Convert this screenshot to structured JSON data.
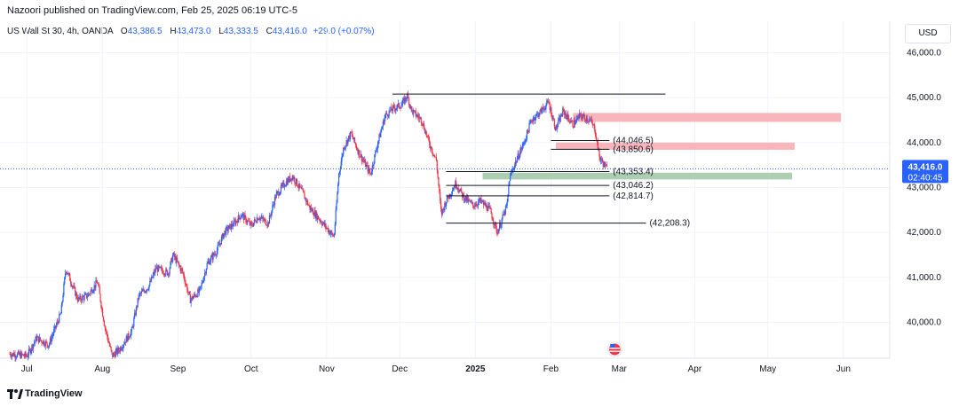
{
  "header": {
    "published": "Nazoori published on TradingView.com, Feb 25, 2025 06:19 UTC-5"
  },
  "legend": {
    "symbol": "US Wall St 30, 4h, OANDA",
    "o_label": "O",
    "o_value": "43,386.5",
    "h_label": "H",
    "h_value": "43,473.0",
    "l_label": "L",
    "l_value": "43,333.5",
    "c_label": "C",
    "c_value": "43,416.0",
    "change": "+29.0 (+0.07%)"
  },
  "currency_button": "USD",
  "footer": {
    "brand": "TradingView"
  },
  "colors": {
    "up": "#2962ff",
    "down": "#f23645",
    "supply_zone": "#f7a9b0",
    "demand_zone": "#9fc5a5",
    "price_line": "#2962ff",
    "grid": "#f0f3fa"
  },
  "chart_data": {
    "type": "candlestick",
    "ylim": [
      39200,
      46700
    ],
    "y_ticks": [
      40000,
      41000,
      42000,
      43000,
      44000,
      45000,
      46000
    ],
    "y_tick_labels": [
      "40,000.0",
      "41,000.0",
      "42,000.0",
      "43,000.0",
      "44,000.0",
      "45,000.0",
      "46,000.0"
    ],
    "x_labels": [
      "Jul",
      "Aug",
      "Sep",
      "Oct",
      "Nov",
      "Dec",
      "2025",
      "Feb",
      "Mar",
      "Apr",
      "May",
      "Jun"
    ],
    "x_label_dates": [
      "2024-07-01",
      "2024-08-01",
      "2024-09-01",
      "2024-10-01",
      "2024-11-01",
      "2024-12-01",
      "2025-01-01",
      "2025-02-01",
      "2025-03-01",
      "2025-04-01",
      "2025-05-01",
      "2025-06-01"
    ],
    "x_range": [
      "2024-06-20",
      "2025-06-20"
    ],
    "close_path": [
      [
        "2024-06-24",
        39300
      ],
      [
        "2024-07-01",
        39250
      ],
      [
        "2024-07-05",
        39650
      ],
      [
        "2024-07-10",
        39500
      ],
      [
        "2024-07-15",
        40200
      ],
      [
        "2024-07-17",
        41200
      ],
      [
        "2024-07-22",
        40500
      ],
      [
        "2024-07-26",
        40600
      ],
      [
        "2024-07-30",
        40900
      ],
      [
        "2024-08-02",
        39900
      ],
      [
        "2024-08-05",
        39250
      ],
      [
        "2024-08-08",
        39400
      ],
      [
        "2024-08-13",
        39800
      ],
      [
        "2024-08-16",
        40600
      ],
      [
        "2024-08-20",
        40800
      ],
      [
        "2024-08-23",
        41200
      ],
      [
        "2024-08-28",
        41100
      ],
      [
        "2024-08-30",
        41500
      ],
      [
        "2024-09-03",
        41100
      ],
      [
        "2024-09-06",
        40500
      ],
      [
        "2024-09-10",
        40700
      ],
      [
        "2024-09-13",
        41300
      ],
      [
        "2024-09-17",
        41600
      ],
      [
        "2024-09-20",
        42000
      ],
      [
        "2024-09-24",
        42200
      ],
      [
        "2024-09-27",
        42400
      ],
      [
        "2024-10-01",
        42150
      ],
      [
        "2024-10-04",
        42350
      ],
      [
        "2024-10-08",
        42200
      ],
      [
        "2024-10-11",
        42800
      ],
      [
        "2024-10-15",
        43100
      ],
      [
        "2024-10-18",
        43250
      ],
      [
        "2024-10-22",
        42900
      ],
      [
        "2024-10-25",
        42550
      ],
      [
        "2024-10-29",
        42300
      ],
      [
        "2024-11-01",
        42100
      ],
      [
        "2024-11-04",
        41900
      ],
      [
        "2024-11-06",
        43300
      ],
      [
        "2024-11-08",
        43900
      ],
      [
        "2024-11-11",
        44200
      ],
      [
        "2024-11-14",
        43800
      ],
      [
        "2024-11-19",
        43300
      ],
      [
        "2024-11-22",
        44000
      ],
      [
        "2024-11-25",
        44600
      ],
      [
        "2024-11-28",
        44750
      ],
      [
        "2024-12-02",
        44850
      ],
      [
        "2024-12-04",
        45050
      ],
      [
        "2024-12-06",
        44700
      ],
      [
        "2024-12-10",
        44500
      ],
      [
        "2024-12-13",
        44000
      ],
      [
        "2024-12-16",
        43600
      ],
      [
        "2024-12-18",
        42400
      ],
      [
        "2024-12-20",
        42700
      ],
      [
        "2024-12-24",
        43100
      ],
      [
        "2024-12-27",
        42800
      ],
      [
        "2024-12-31",
        42600
      ],
      [
        "2025-01-03",
        42700
      ],
      [
        "2025-01-07",
        42500
      ],
      [
        "2025-01-10",
        42000
      ],
      [
        "2025-01-14",
        42600
      ],
      [
        "2025-01-15",
        43200
      ],
      [
        "2025-01-17",
        43500
      ],
      [
        "2025-01-21",
        44000
      ],
      [
        "2025-01-24",
        44500
      ],
      [
        "2025-01-28",
        44700
      ],
      [
        "2025-01-31",
        44900
      ],
      [
        "2025-02-03",
        44300
      ],
      [
        "2025-02-06",
        44700
      ],
      [
        "2025-02-10",
        44400
      ],
      [
        "2025-02-13",
        44600
      ],
      [
        "2025-02-17",
        44500
      ],
      [
        "2025-02-19",
        44300
      ],
      [
        "2025-02-21",
        43650
      ],
      [
        "2025-02-24",
        43416
      ]
    ],
    "horizontal_levels": [
      {
        "price": 45080,
        "from": "2024-11-28",
        "to": "2025-03-20",
        "label": ""
      },
      {
        "price": 44046.5,
        "from": "2025-02-01",
        "to": "2025-02-25",
        "label": "(44,046.5)"
      },
      {
        "price": 43850.6,
        "from": "2025-02-01",
        "to": "2025-02-25",
        "label": "(43,850.6)"
      },
      {
        "price": 43353.4,
        "from": "2024-12-20",
        "to": "2025-02-25",
        "label": "(43,353.4)"
      },
      {
        "price": 43046.2,
        "from": "2024-12-20",
        "to": "2025-02-25",
        "label": "(43,046.2)"
      },
      {
        "price": 42814.7,
        "from": "2024-12-20",
        "to": "2025-02-25",
        "label": "(42,814.7)"
      },
      {
        "price": 42208.3,
        "from": "2024-12-20",
        "to": "2025-03-12",
        "label": "(42,208.3)"
      }
    ],
    "zones": [
      {
        "kind": "supply",
        "top": 44660,
        "bottom": 44460,
        "from": "2025-02-10",
        "to": "2025-05-31"
      },
      {
        "kind": "supply",
        "top": 44000,
        "bottom": 43840,
        "from": "2025-02-03",
        "to": "2025-05-12"
      },
      {
        "kind": "demand",
        "top": 43330,
        "bottom": 43180,
        "from": "2025-01-04",
        "to": "2025-05-11"
      }
    ],
    "last_price": {
      "value": 43416.0,
      "label": "43,416.0",
      "countdown": "02:40:45"
    }
  }
}
